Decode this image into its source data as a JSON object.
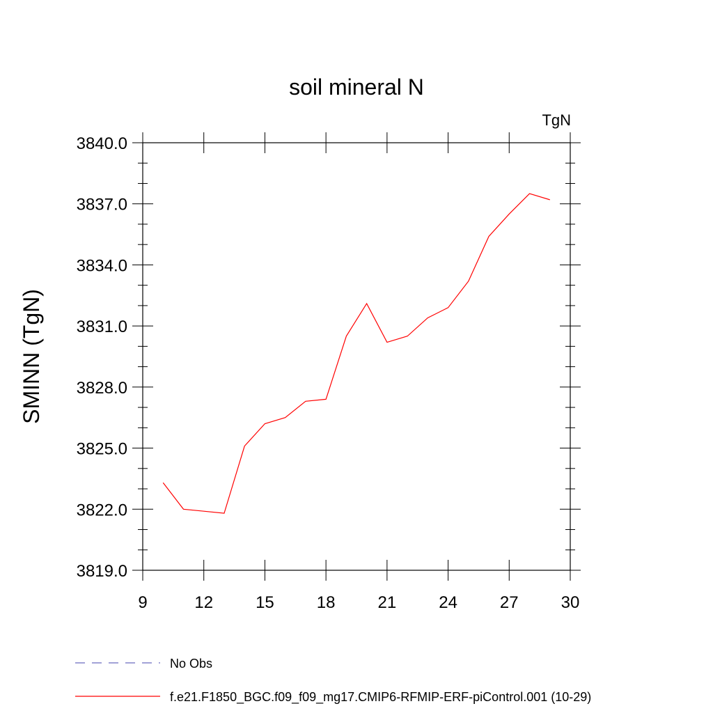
{
  "chart_data": {
    "type": "line",
    "title": "soil mineral N",
    "units_label": "TgN",
    "ylabel": "SMINN  (TgN)",
    "xlabel": "",
    "xlim": [
      9,
      30
    ],
    "ylim": [
      3819.0,
      3840.0
    ],
    "xticks": [
      "9",
      "12",
      "15",
      "18",
      "21",
      "24",
      "27",
      "30"
    ],
    "yticks": [
      "3819.0",
      "3822.0",
      "3825.0",
      "3828.0",
      "3831.0",
      "3834.0",
      "3837.0",
      "3840.0"
    ],
    "grid": false,
    "legend_placement": "bottom",
    "series": [
      {
        "name": "No Obs",
        "color": "#6b6bbf",
        "dash": "dashed",
        "x": [],
        "y": []
      },
      {
        "name": "f.e21.F1850_BGC.f09_f09_mg17.CMIP6-RFMIP-ERF-piControl.001 (10-29)",
        "color": "#ff0000",
        "dash": "solid",
        "x": [
          10,
          11,
          12,
          13,
          14,
          15,
          16,
          17,
          18,
          19,
          20,
          21,
          22,
          23,
          24,
          25,
          26,
          27,
          28,
          29
        ],
        "y": [
          3823.3,
          3822.0,
          3821.9,
          3821.8,
          3825.1,
          3826.2,
          3826.5,
          3827.3,
          3827.4,
          3830.5,
          3832.1,
          3830.2,
          3830.5,
          3831.4,
          3831.9,
          3833.2,
          3835.4,
          3836.5,
          3837.5,
          3837.2
        ]
      }
    ]
  }
}
